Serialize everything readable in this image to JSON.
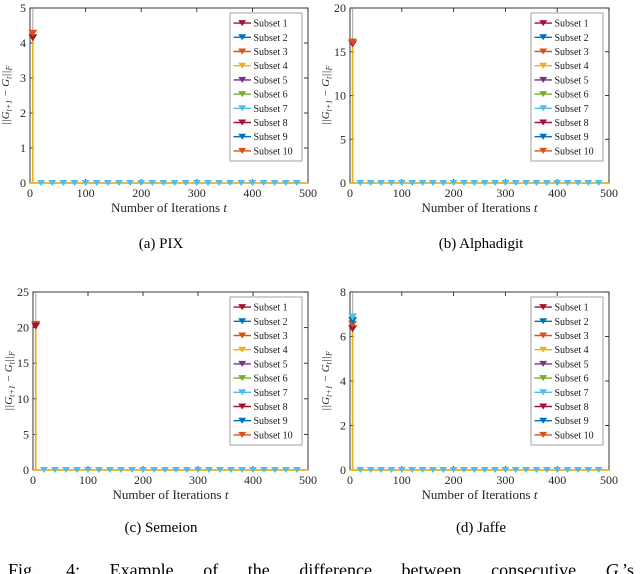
{
  "figure_caption_parts": {
    "prefix": "Fig. 4: Example of the difference between consecutive",
    "symbol": "G",
    "sub": "t",
    "suffix": "’s"
  },
  "style": {
    "axis_color": "#262626",
    "spike_line_color": "#EDB120",
    "baseline_line_color": "#EDB120",
    "overshoot_line_color": "#b3b3b3",
    "baseline_marker_color": "#4DBEEE",
    "legend_border_color": "#8c8c8c",
    "background_color": "#ffffff"
  },
  "legend": {
    "position": "top-right",
    "entries": [
      {
        "label": "Subset 1",
        "color": "#A2142F"
      },
      {
        "label": "Subset 2",
        "color": "#0072BD"
      },
      {
        "label": "Subset 3",
        "color": "#D95319"
      },
      {
        "label": "Subset 4",
        "color": "#EDB120"
      },
      {
        "label": "Subset 5",
        "color": "#7E2F8E"
      },
      {
        "label": "Subset 6",
        "color": "#77AC30"
      },
      {
        "label": "Subset 7",
        "color": "#4DBEEE"
      },
      {
        "label": "Subset 8",
        "color": "#A2142F"
      },
      {
        "label": "Subset 9",
        "color": "#0072BD"
      },
      {
        "label": "Subset 10",
        "color": "#D95319"
      }
    ]
  },
  "ylabel_parts": [
    {
      "t": "||G"
    },
    {
      "t": "t+1",
      "sub": true
    },
    {
      "t": " − G"
    },
    {
      "t": "t",
      "sub": true
    },
    {
      "t": "||"
    },
    {
      "t": "F",
      "sub": true
    }
  ],
  "xlabel": {
    "text": "Number of Iterations ",
    "var": "t"
  },
  "chart_data": [
    {
      "type": "line",
      "caption": "(a) PIX",
      "xlim": [
        0,
        500
      ],
      "ylim": [
        0,
        5
      ],
      "xticks": [
        0,
        100,
        200,
        300,
        400,
        500
      ],
      "yticks": [
        0,
        1,
        2,
        3,
        4,
        5
      ],
      "grid": false,
      "spike_x": 5,
      "peak_value": 4.3,
      "peak_markers": [
        {
          "y": 4.15,
          "color": "#A2142F"
        },
        {
          "y": 4.28,
          "color": "#D95319"
        }
      ],
      "steady_value": 0,
      "baseline_marker_xs": [
        20,
        40,
        60,
        80,
        100,
        120,
        140,
        160,
        180,
        200,
        220,
        240,
        260,
        280,
        300,
        320,
        340,
        360,
        380,
        400,
        420,
        440,
        460,
        480
      ]
    },
    {
      "type": "line",
      "caption": "(b) Alphadigit",
      "xlim": [
        0,
        500
      ],
      "ylim": [
        0,
        20
      ],
      "xticks": [
        0,
        100,
        200,
        300,
        400,
        500
      ],
      "yticks": [
        0,
        5,
        10,
        15,
        20
      ],
      "grid": false,
      "spike_x": 5,
      "peak_value": 16.1,
      "peak_markers": [
        {
          "y": 15.9,
          "color": "#A2142F"
        },
        {
          "y": 16.1,
          "color": "#D95319"
        }
      ],
      "steady_value": 0,
      "baseline_marker_xs": [
        20,
        40,
        60,
        80,
        100,
        120,
        140,
        160,
        180,
        200,
        220,
        240,
        260,
        280,
        300,
        320,
        340,
        360,
        380,
        400,
        420,
        440,
        460,
        480
      ]
    },
    {
      "type": "line",
      "caption": "(c) Semeion",
      "xlim": [
        0,
        500
      ],
      "ylim": [
        0,
        25
      ],
      "xticks": [
        0,
        100,
        200,
        300,
        400,
        500
      ],
      "yticks": [
        0,
        5,
        10,
        15,
        20,
        25
      ],
      "grid": false,
      "spike_x": 5,
      "peak_value": 20.4,
      "peak_markers": [
        {
          "y": 20.45,
          "color": "#D95319"
        },
        {
          "y": 20.2,
          "color": "#A2142F"
        }
      ],
      "steady_value": 0,
      "baseline_marker_xs": [
        20,
        40,
        60,
        80,
        100,
        120,
        140,
        160,
        180,
        200,
        220,
        240,
        260,
        280,
        300,
        320,
        340,
        360,
        380,
        400,
        420,
        440,
        460,
        480
      ]
    },
    {
      "type": "line",
      "caption": "(d) Jaffe",
      "xlim": [
        0,
        500
      ],
      "ylim": [
        0,
        8
      ],
      "xticks": [
        0,
        100,
        200,
        300,
        400,
        500
      ],
      "yticks": [
        0,
        2,
        4,
        6,
        8
      ],
      "grid": false,
      "spike_x": 5,
      "peak_value": 6.9,
      "peak_markers": [
        {
          "y": 6.35,
          "color": "#A2142F"
        },
        {
          "y": 6.55,
          "color": "#D95319"
        },
        {
          "y": 6.72,
          "color": "#0072BD"
        },
        {
          "y": 6.88,
          "color": "#4DBEEE"
        }
      ],
      "steady_value": 0,
      "baseline_marker_xs": [
        20,
        40,
        60,
        80,
        100,
        120,
        140,
        160,
        180,
        200,
        220,
        240,
        260,
        280,
        300,
        320,
        340,
        360,
        380,
        400,
        420,
        440,
        460,
        480
      ]
    }
  ]
}
